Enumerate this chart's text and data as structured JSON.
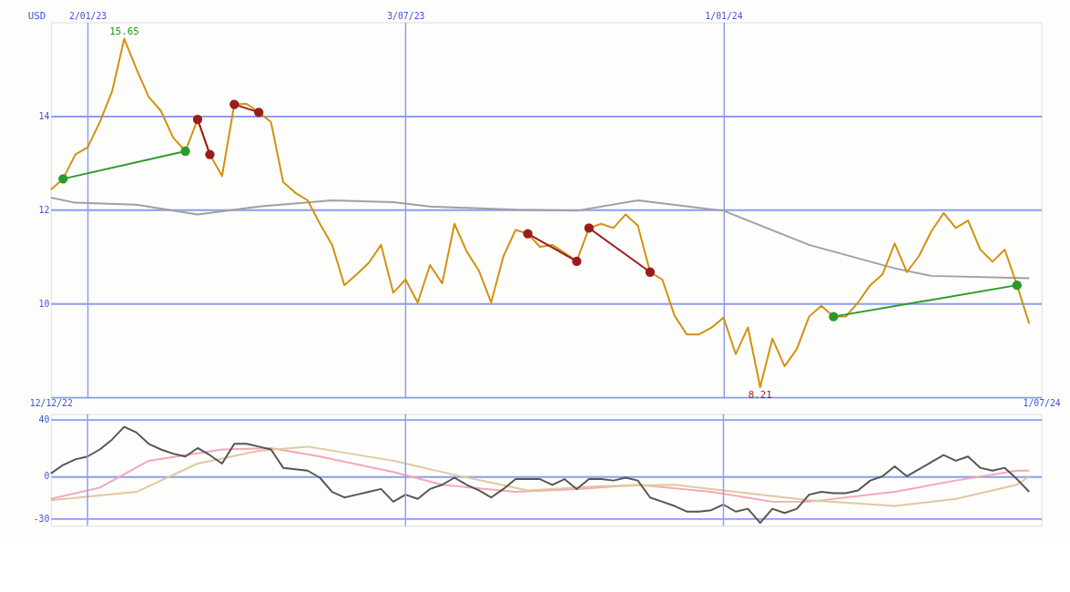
{
  "chart_data": [
    {
      "type": "line",
      "ylabel": "USD",
      "xlim": [
        "2022-12-12",
        "2024-07-01"
      ],
      "ylim": [
        8,
        16
      ],
      "yticks": [
        10,
        12,
        14
      ],
      "xticks": [
        {
          "value": "2022-12-12",
          "label": "12/12/22"
        },
        {
          "value": "2024-07-01",
          "label": "1/07/24"
        }
      ],
      "x2lim": [
        "2022-12-12",
        "2024-07-01"
      ],
      "x2ticks": [
        {
          "value": "2023-01-02",
          "label": "2/01/23"
        },
        {
          "value": "2023-07-03",
          "label": "3/07/23"
        },
        {
          "value": "2024-01-01",
          "label": "1/01/24"
        }
      ],
      "grid": true,
      "annotations": [
        {
          "text": "15.65",
          "x": "2023-01-23",
          "y": 15.65
        },
        {
          "text": "8.21",
          "x": "2024-01-22",
          "y": 8.21
        }
      ],
      "x": [
        "2022-12-12",
        "2022-12-19",
        "2022-12-26",
        "2023-01-02",
        "2023-01-09",
        "2023-01-16",
        "2023-01-23",
        "2023-01-30",
        "2023-02-06",
        "2023-02-13",
        "2023-02-20",
        "2023-02-27",
        "2023-03-06",
        "2023-03-13",
        "2023-03-20",
        "2023-03-27",
        "2023-04-03",
        "2023-04-10",
        "2023-04-17",
        "2023-04-24",
        "2023-05-01",
        "2023-05-08",
        "2023-05-15",
        "2023-05-22",
        "2023-05-29",
        "2023-06-05",
        "2023-06-12",
        "2023-06-19",
        "2023-06-26",
        "2023-07-03",
        "2023-07-10",
        "2023-07-17",
        "2023-07-24",
        "2023-07-31",
        "2023-08-07",
        "2023-08-14",
        "2023-08-21",
        "2023-08-28",
        "2023-09-04",
        "2023-09-11",
        "2023-09-18",
        "2023-09-25",
        "2023-10-02",
        "2023-10-09",
        "2023-10-16",
        "2023-10-23",
        "2023-10-30",
        "2023-11-06",
        "2023-11-13",
        "2023-11-20",
        "2023-11-27",
        "2023-12-04",
        "2023-12-11",
        "2023-12-18",
        "2023-12-25",
        "2024-01-01",
        "2024-01-08",
        "2024-01-15",
        "2024-01-22",
        "2024-01-29",
        "2024-02-05",
        "2024-02-12",
        "2024-02-19",
        "2024-02-26",
        "2024-03-04",
        "2024-03-11",
        "2024-03-18",
        "2024-03-25",
        "2024-04-01",
        "2024-04-08",
        "2024-04-15",
        "2024-04-22",
        "2024-04-29",
        "2024-05-06",
        "2024-05-13",
        "2024-05-20",
        "2024-05-27",
        "2024-06-03",
        "2024-06-10",
        "2024-06-17",
        "2024-06-24"
      ],
      "series": [
        {
          "color": "#a0a0a0",
          "x": [
            "2022-12-12",
            "2022-12-26",
            "2023-01-30",
            "2023-03-06",
            "2023-04-10",
            "2023-05-22",
            "2023-06-26",
            "2023-07-17",
            "2023-09-04",
            "2023-10-09",
            "2023-11-13",
            "2024-01-01",
            "2024-02-19",
            "2024-04-08",
            "2024-04-29",
            "2024-06-24"
          ],
          "values": [
            12.26,
            12.15,
            12.11,
            11.9,
            12.07,
            12.2,
            12.16,
            12.07,
            12.0,
            11.98,
            12.2,
            11.98,
            11.25,
            10.75,
            10.59,
            10.54
          ]
        },
        {
          "color": "#d4900a",
          "values": [
            12.43,
            12.66,
            13.18,
            13.33,
            13.87,
            14.52,
            15.65,
            15.0,
            14.41,
            14.11,
            13.54,
            13.25,
            13.93,
            13.18,
            12.72,
            14.25,
            14.26,
            14.08,
            13.87,
            12.59,
            12.36,
            12.2,
            11.7,
            11.25,
            10.39,
            10.62,
            10.87,
            11.25,
            10.23,
            10.51,
            10.02,
            10.82,
            10.43,
            11.7,
            11.11,
            10.7,
            10.02,
            11.0,
            11.57,
            11.49,
            11.21,
            11.25,
            11.08,
            10.9,
            11.61,
            11.7,
            11.61,
            11.9,
            11.66,
            10.67,
            10.51,
            9.74,
            9.34,
            9.34,
            9.48,
            9.7,
            8.92,
            9.49,
            8.21,
            9.25,
            8.66,
            9.03,
            9.72,
            9.95,
            9.72,
            9.72,
            10.02,
            10.39,
            10.62,
            11.28,
            10.67,
            11.02,
            11.54,
            11.93,
            11.61,
            11.77,
            11.15,
            10.89,
            11.15,
            10.39,
            9.57
          ]
        },
        {
          "color": "#2a9a2a",
          "marker": "circle",
          "x": [
            "2022-12-19",
            "2023-02-27"
          ],
          "values": [
            12.66,
            13.25
          ]
        },
        {
          "color": "#9b1c1c",
          "marker": "circle",
          "x": [
            "2023-03-06",
            "2023-03-13"
          ],
          "values": [
            13.93,
            13.18
          ]
        },
        {
          "color": "#9b1c1c",
          "marker": "circle",
          "x": [
            "2023-03-27",
            "2023-04-10"
          ],
          "values": [
            14.25,
            14.08
          ]
        },
        {
          "color": "#9b1c1c",
          "marker": "circle",
          "x": [
            "2023-09-11",
            "2023-10-09"
          ],
          "values": [
            11.49,
            10.9
          ]
        },
        {
          "color": "#9b1c1c",
          "marker": "circle",
          "x": [
            "2023-10-16",
            "2023-11-20"
          ],
          "values": [
            11.61,
            10.67
          ]
        },
        {
          "color": "#2a9a2a",
          "marker": "circle",
          "x": [
            "2024-03-04",
            "2024-06-17"
          ],
          "values": [
            9.72,
            10.39
          ]
        }
      ]
    },
    {
      "type": "line",
      "xlim": [
        "2022-12-12",
        "2024-07-01"
      ],
      "ylim": [
        -35,
        44
      ],
      "yticks": [
        -30,
        0,
        40
      ],
      "tick_labels": "y",
      "grid": "y",
      "ref_lines": [
        {
          "axis": "x",
          "value": "2023-01-02"
        },
        {
          "axis": "x",
          "value": "2023-07-03"
        },
        {
          "axis": "x",
          "value": "2024-01-01"
        }
      ],
      "x": [
        "2022-12-12",
        "2022-12-19",
        "2022-12-26",
        "2023-01-02",
        "2023-01-09",
        "2023-01-16",
        "2023-01-23",
        "2023-01-30",
        "2023-02-06",
        "2023-02-13",
        "2023-02-20",
        "2023-02-27",
        "2023-03-06",
        "2023-03-13",
        "2023-03-20",
        "2023-03-27",
        "2023-04-03",
        "2023-04-10",
        "2023-04-17",
        "2023-04-24",
        "2023-05-01",
        "2023-05-08",
        "2023-05-15",
        "2023-05-22",
        "2023-05-29",
        "2023-06-05",
        "2023-06-12",
        "2023-06-19",
        "2023-06-26",
        "2023-07-03",
        "2023-07-10",
        "2023-07-17",
        "2023-07-24",
        "2023-07-31",
        "2023-08-07",
        "2023-08-14",
        "2023-08-21",
        "2023-08-28",
        "2023-09-04",
        "2023-09-11",
        "2023-09-18",
        "2023-09-25",
        "2023-10-02",
        "2023-10-09",
        "2023-10-16",
        "2023-10-23",
        "2023-10-30",
        "2023-11-06",
        "2023-11-13",
        "2023-11-20",
        "2023-11-27",
        "2023-12-04",
        "2023-12-11",
        "2023-12-18",
        "2023-12-25",
        "2024-01-01",
        "2024-01-08",
        "2024-01-15",
        "2024-01-22",
        "2024-01-29",
        "2024-02-05",
        "2024-02-12",
        "2024-02-19",
        "2024-02-26",
        "2024-03-04",
        "2024-03-11",
        "2024-03-18",
        "2024-03-25",
        "2024-04-01",
        "2024-04-08",
        "2024-04-15",
        "2024-04-22",
        "2024-04-29",
        "2024-05-06",
        "2024-05-13",
        "2024-05-20",
        "2024-05-27",
        "2024-06-03",
        "2024-06-10",
        "2024-06-17",
        "2024-06-24"
      ],
      "series": [
        {
          "color": "#f4a6b8",
          "x": [
            "2022-12-12",
            "2023-01-09",
            "2023-02-06",
            "2023-03-20",
            "2023-04-17",
            "2023-05-15",
            "2023-06-26",
            "2023-07-24",
            "2023-09-04",
            "2023-10-09",
            "2023-11-13",
            "2023-12-25",
            "2024-01-29",
            "2024-02-19",
            "2024-04-08",
            "2024-05-13",
            "2024-06-17",
            "2024-06-24"
          ],
          "values": [
            -16,
            -8,
            11,
            19,
            20,
            14,
            3,
            -6,
            -11,
            -9,
            -6,
            -11,
            -18,
            -18,
            -11,
            -3,
            4,
            4
          ]
        },
        {
          "color": "#e0c8a0",
          "x": [
            "2022-12-12",
            "2023-01-30",
            "2023-03-06",
            "2023-04-10",
            "2023-05-08",
            "2023-06-26",
            "2023-07-31",
            "2023-09-11",
            "2023-10-23",
            "2023-12-04",
            "2024-01-01",
            "2024-02-19",
            "2024-04-08",
            "2024-05-13",
            "2024-06-17",
            "2024-06-24"
          ],
          "values": [
            -17,
            -11,
            9,
            18,
            21,
            11,
            1,
            -10,
            -7,
            -6,
            -10,
            -17,
            -21,
            -16,
            -6,
            0
          ]
        },
        {
          "color": "#555555",
          "values": [
            2,
            8,
            12,
            14,
            19,
            26,
            35,
            31,
            23,
            19,
            16,
            14,
            20,
            15,
            9,
            23,
            23,
            21,
            19,
            6,
            5,
            4,
            -1,
            -11,
            -15,
            -13,
            -11,
            -9,
            -18,
            -13,
            -16,
            -9,
            -6,
            -1,
            -6,
            -10,
            -15,
            -9,
            -2,
            -2,
            -2,
            -6,
            -2,
            -9,
            -2,
            -2,
            -3,
            -1,
            -3,
            -15,
            -18,
            -21,
            -25,
            -25,
            -24,
            -20,
            -25,
            -23,
            -33,
            -23,
            -26,
            -23,
            -13,
            -11,
            -12,
            -12,
            -10,
            -3,
            0,
            7,
            0,
            5,
            10,
            15,
            11,
            14,
            6,
            4,
            6,
            -2,
            -11
          ]
        }
      ]
    }
  ]
}
